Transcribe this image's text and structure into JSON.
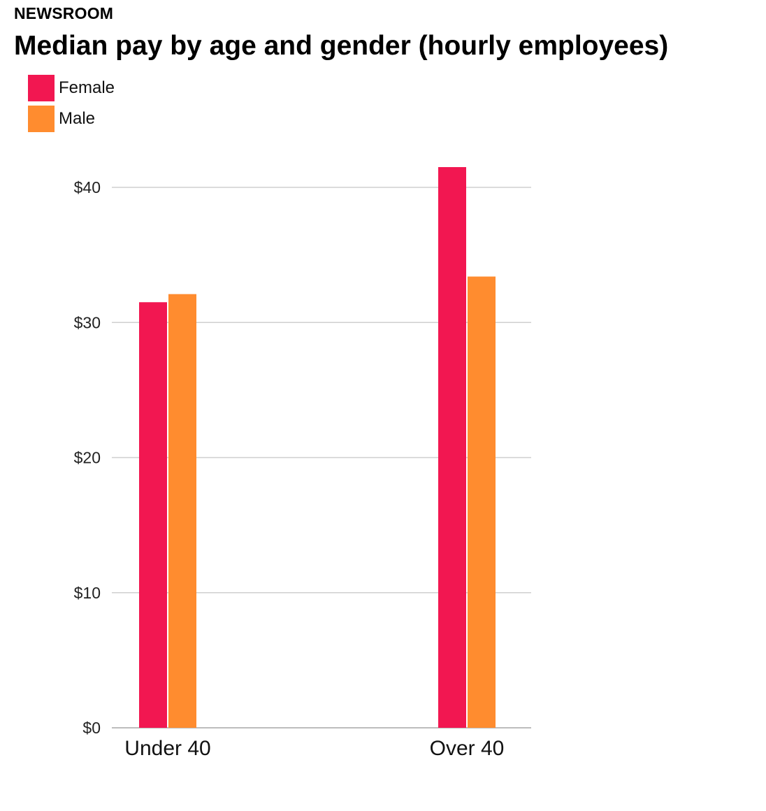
{
  "header": {
    "kicker": "NEWSROOM",
    "title": "Median pay by age and gender (hourly employees)"
  },
  "legend": {
    "items": [
      {
        "label": "Female",
        "color": "#f21751"
      },
      {
        "label": "Male",
        "color": "#ff8c2f"
      }
    ]
  },
  "chart_data": {
    "type": "bar",
    "title": "Median pay by age and gender (hourly employees)",
    "categories": [
      "Under 40",
      "Over 40"
    ],
    "series": [
      {
        "name": "Female",
        "color": "#f21751",
        "values": [
          31.5,
          41.5
        ]
      },
      {
        "name": "Male",
        "color": "#ff8c2f",
        "values": [
          32.1,
          33.4
        ]
      }
    ],
    "ylim": [
      0,
      40
    ],
    "yticks": [
      0,
      10,
      20,
      30,
      40
    ],
    "ytick_labels": [
      "$0",
      "$10",
      "$20",
      "$30",
      "$40"
    ],
    "grid": true,
    "legend_position": "top-left",
    "xlabel": "",
    "ylabel": ""
  }
}
